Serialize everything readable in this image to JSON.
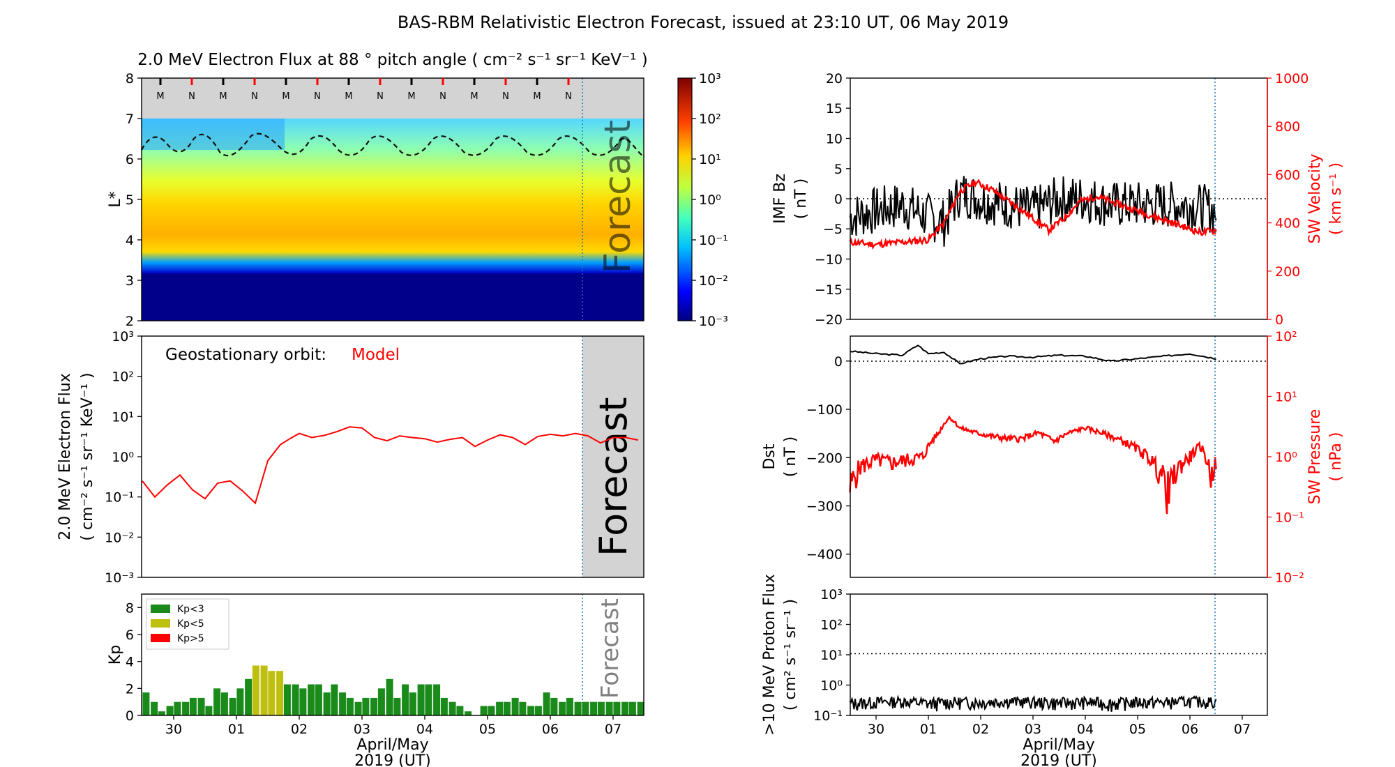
{
  "page_title": "BAS-RBM Relativistic Electron Forecast, issued at 23:10 UT, 06 May 2019",
  "shared": {
    "xlabel_line1": "April/May",
    "xlabel_line2": "2019 (UT)",
    "days": [
      "30",
      "01",
      "02",
      "03",
      "04",
      "05",
      "06",
      "07"
    ],
    "forecast_label": "Forecast",
    "colors": {
      "model_red": "#ff0000",
      "kp_green": "#1a8a1a",
      "kp_yellow": "#bfbf10",
      "forecast_grey": "#d3d3d3",
      "forecast_line": "#1f77b4"
    }
  },
  "chart_data": [
    {
      "id": "flux_map",
      "type": "heatmap",
      "title": "2.0 MeV Electron Flux at 88 ° pitch angle ( cm⁻² s⁻¹ sr⁻¹ KeV⁻¹ )",
      "ylabel": "L*",
      "ylim": [
        2,
        8
      ],
      "y_ticks": [
        "2",
        "3",
        "4",
        "5",
        "6",
        "7",
        "8"
      ],
      "orbit_markers": [
        "M",
        "N",
        "M",
        "N",
        "M",
        "N",
        "M",
        "N",
        "M",
        "N",
        "M",
        "N",
        "M",
        "N"
      ],
      "colorbar": {
        "ticks": [
          "10⁻³",
          "10⁻²",
          "10⁻¹",
          "10⁰",
          "10¹",
          "10²",
          "10³"
        ],
        "range": [
          -3,
          3
        ]
      },
      "forecast_text": "Forecast"
    },
    {
      "id": "geo_flux",
      "type": "line",
      "annotation_label": "Geostationary orbit:",
      "annotation_value": "Model",
      "ylabel_line1": "2.0 MeV Electron Flux",
      "ylabel_line2": "( cm⁻² s⁻¹ sr⁻¹ KeV⁻¹ )",
      "y_ticks": [
        "10⁻³",
        "10⁻²",
        "10⁻¹",
        "10⁰",
        "10¹",
        "10²",
        "10³"
      ],
      "ylim_log10": [
        -3,
        3
      ],
      "x_days": [
        -0.5,
        -0.3,
        -0.1,
        0.1,
        0.3,
        0.5,
        0.7,
        0.9,
        1.1,
        1.3,
        1.5,
        1.7,
        1.85,
        2.0,
        2.2,
        2.4,
        2.6,
        2.8,
        3.0,
        3.2,
        3.4,
        3.6,
        3.8,
        4.0,
        4.2,
        4.4,
        4.6,
        4.8,
        5.0,
        5.2,
        5.4,
        5.6,
        5.8,
        6.0,
        6.2,
        6.4,
        6.6,
        6.8,
        7.0,
        7.2,
        7.4
      ],
      "values": [
        0.25,
        0.1,
        0.2,
        0.35,
        0.15,
        0.09,
        0.22,
        0.25,
        0.14,
        0.07,
        0.8,
        2.0,
        2.8,
        3.8,
        3.0,
        3.4,
        4.2,
        5.5,
        5.2,
        3.0,
        2.5,
        3.3,
        3.0,
        2.8,
        2.3,
        2.7,
        3.0,
        1.8,
        2.6,
        3.5,
        3.0,
        2.0,
        3.2,
        3.6,
        3.3,
        3.8,
        3.3,
        2.2,
        3.0,
        3.0,
        2.6
      ]
    },
    {
      "id": "kp",
      "type": "bar",
      "ylabel": "Kp",
      "y_ticks": [
        "0",
        "2",
        "4",
        "6",
        "8"
      ],
      "ylim": [
        0,
        9
      ],
      "legend": [
        "Kp<3",
        "Kp<5",
        "Kp>5"
      ],
      "forecast_text": "Forecast",
      "x_days": [
        -0.44,
        -0.31,
        -0.19,
        -0.06,
        0.06,
        0.19,
        0.31,
        0.44,
        0.56,
        0.69,
        0.81,
        0.94,
        1.06,
        1.19,
        1.31,
        1.44,
        1.56,
        1.69,
        1.81,
        1.94,
        2.06,
        2.19,
        2.31,
        2.44,
        2.56,
        2.69,
        2.81,
        2.94,
        3.06,
        3.19,
        3.31,
        3.44,
        3.56,
        3.69,
        3.81,
        3.94,
        4.06,
        4.19,
        4.31,
        4.44,
        4.56,
        4.69,
        4.81,
        4.94,
        5.06,
        5.19,
        5.31,
        5.44,
        5.56,
        5.69,
        5.81,
        5.94,
        6.06,
        6.19,
        6.31,
        6.44,
        6.56,
        6.69,
        6.81,
        6.94,
        7.06,
        7.19,
        7.31,
        7.44
      ],
      "values": [
        1.7,
        1.0,
        0.3,
        0.7,
        1.0,
        1.0,
        1.3,
        1.3,
        0.7,
        2.0,
        1.7,
        1.3,
        2.0,
        2.7,
        3.7,
        3.7,
        3.3,
        3.3,
        2.3,
        2.3,
        2.0,
        2.3,
        2.3,
        1.7,
        2.3,
        1.7,
        1.3,
        1.0,
        1.3,
        1.3,
        2.0,
        2.7,
        1.3,
        2.3,
        1.7,
        2.3,
        2.3,
        2.3,
        1.3,
        1.0,
        0.7,
        0.3,
        0,
        0.7,
        0.7,
        1.0,
        1.0,
        1.3,
        1.0,
        0.7,
        0.7,
        1.7,
        1.3,
        1.0,
        1.3,
        1.0,
        1.0,
        1.0,
        1.0,
        1.0,
        1.0,
        1.0,
        1.0,
        1.0
      ]
    },
    {
      "id": "imf_sw",
      "type": "line",
      "ylabel_left_line1": "IMF Bz",
      "ylabel_left_line2": "( nT )",
      "ylabel_right_line1": "SW Velocity",
      "ylabel_right_line2": "( km s⁻¹ )",
      "left_ticks": [
        "−20",
        "−15",
        "−10",
        "−5",
        "0",
        "5",
        "10",
        "15",
        "20"
      ],
      "right_ticks": [
        "0",
        "200",
        "400",
        "600",
        "800",
        "1000"
      ],
      "ylim_left": [
        -20,
        20
      ],
      "ylim_right": [
        0,
        1000
      ],
      "series": [
        {
          "name": "IMF Bz",
          "x_days": [
            -0.5,
            0.0,
            0.5,
            1.0,
            1.3,
            1.6,
            2.0,
            2.5,
            3.0,
            3.5,
            4.0,
            4.5,
            5.0,
            5.5,
            6.0,
            6.5
          ],
          "values": [
            -3,
            -2,
            -1,
            -3,
            -4,
            1,
            0,
            -1,
            -2,
            0,
            0,
            -1,
            -1,
            -1,
            -1,
            -2
          ]
        },
        {
          "name": "SW Velocity",
          "x_days": [
            -0.5,
            0.0,
            0.5,
            1.0,
            1.3,
            1.6,
            1.9,
            2.2,
            2.6,
            3.0,
            3.3,
            3.6,
            3.9,
            4.2,
            4.6,
            5.0,
            5.4,
            5.8,
            6.2,
            6.5
          ],
          "values": [
            320,
            310,
            320,
            330,
            400,
            530,
            570,
            540,
            480,
            420,
            370,
            420,
            490,
            510,
            480,
            450,
            420,
            390,
            360,
            370
          ]
        }
      ]
    },
    {
      "id": "dst_pressure",
      "type": "line",
      "ylabel_left_line1": "Dst",
      "ylabel_left_line2": "( nT )",
      "ylabel_right_line1": "SW Pressure",
      "ylabel_right_line2": "( nPa )",
      "left_ticks": [
        "−400",
        "−300",
        "−200",
        "−100",
        "0"
      ],
      "right_ticks": [
        "10⁻²",
        "10⁻¹",
        "10⁰",
        "10¹",
        "10²"
      ],
      "ylim_left": [
        -450,
        30
      ],
      "ylim_right_log10": [
        -2,
        2
      ],
      "series": [
        {
          "name": "Dst",
          "x_days": [
            -0.5,
            0.0,
            0.5,
            0.8,
            1.0,
            1.3,
            1.6,
            2.0,
            2.5,
            3.0,
            3.5,
            4.0,
            4.5,
            5.0,
            5.5,
            6.0,
            6.5
          ],
          "values": [
            0,
            -5,
            -8,
            12,
            -5,
            -2,
            -25,
            -15,
            -10,
            -12,
            -8,
            -10,
            -20,
            -15,
            -10,
            -5,
            -15
          ]
        },
        {
          "name": "SW Pressure",
          "x_days": [
            -0.5,
            -0.3,
            0.0,
            0.3,
            0.6,
            0.9,
            1.2,
            1.4,
            1.6,
            1.9,
            2.2,
            2.5,
            2.8,
            3.1,
            3.4,
            3.7,
            4.0,
            4.3,
            4.6,
            4.9,
            5.2,
            5.4,
            5.6,
            5.8,
            6.0,
            6.2,
            6.4,
            6.5
          ],
          "values": [
            0.3,
            0.7,
            0.9,
            0.8,
            0.9,
            1.0,
            2.5,
            4.5,
            3.0,
            2.5,
            2.2,
            2.0,
            2.0,
            2.5,
            1.8,
            2.5,
            3.0,
            2.5,
            2.0,
            1.5,
            1.0,
            0.6,
            0.3,
            0.7,
            1.0,
            1.5,
            0.5,
            0.8
          ]
        }
      ]
    },
    {
      "id": "proton_flux",
      "type": "line",
      "ylabel_line1": ">10 MeV Proton Flux",
      "ylabel_line2": "( cm² s⁻¹ sr⁻¹ )",
      "y_ticks": [
        "10⁻¹",
        "10⁰",
        "10¹",
        "10²",
        "10³"
      ],
      "ylim_log10": [
        -1,
        3
      ],
      "threshold": 10,
      "series": [
        {
          "name": ">10 MeV Proton Flux",
          "x_days": [
            -0.5,
            0.0,
            0.5,
            1.0,
            1.5,
            2.0,
            2.5,
            3.0,
            3.5,
            4.0,
            4.5,
            5.0,
            5.5,
            6.0,
            6.5
          ],
          "values": [
            0.25,
            0.28,
            0.3,
            0.25,
            0.28,
            0.27,
            0.3,
            0.28,
            0.26,
            0.28,
            0.25,
            0.28,
            0.27,
            0.3,
            0.28
          ]
        }
      ]
    }
  ]
}
